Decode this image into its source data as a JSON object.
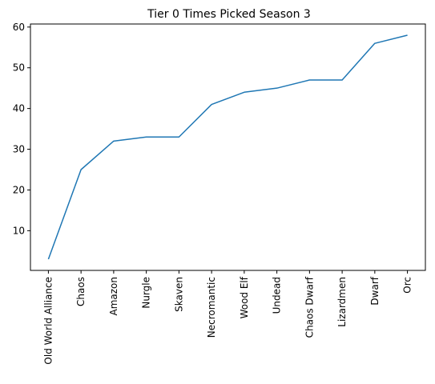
{
  "chart_data": {
    "type": "line",
    "title": "Tier 0 Times Picked Season 3",
    "xlabel": "",
    "ylabel": "",
    "categories": [
      "Old World Alliance",
      "Chaos",
      "Amazon",
      "Nurgle",
      "Skaven",
      "Necromantic",
      "Wood Elf",
      "Undead",
      "Chaos Dwarf",
      "Lizardmen",
      "Dwarf",
      "Orc"
    ],
    "series": [
      {
        "values": [
          3,
          25,
          32,
          33,
          33,
          41,
          44,
          45,
          47,
          47,
          56,
          58
        ],
        "color": "#1f77b4"
      }
    ],
    "ylim": [
      0.25,
      60.75
    ],
    "yticks": [
      10,
      20,
      30,
      40,
      50,
      60
    ],
    "grid": false,
    "legend": "none"
  }
}
